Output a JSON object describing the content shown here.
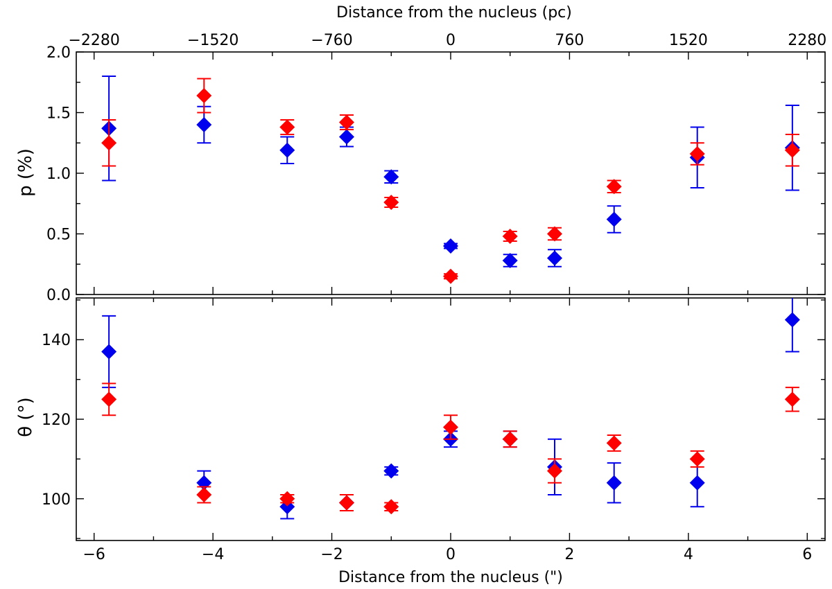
{
  "chart_data": [
    {
      "type": "scatter",
      "panel": "top",
      "ylabel": "p (%)",
      "xlabel": "",
      "top_xlabel": "Distance from the nucleus (pc)",
      "top_xticks": [
        "−2280",
        "−1520",
        "−760",
        "0",
        "760",
        "1520",
        "2280"
      ],
      "top_xticks_values": [
        -6,
        -4,
        -2,
        0,
        2,
        4,
        6
      ],
      "xlim": [
        -6.3,
        6.3
      ],
      "ylim": [
        0,
        2.0
      ],
      "yticks": [
        0.0,
        0.5,
        1.0,
        1.5,
        2.0
      ],
      "ytick_labels": [
        "0.0",
        "0.5",
        "1.0",
        "1.5",
        "2.0"
      ],
      "yminor": [
        0.25,
        0.75,
        1.25,
        1.75
      ],
      "series": [
        {
          "name": "blue",
          "color": "#0000ee",
          "points": [
            {
              "x": -5.75,
              "y": 1.37,
              "lo": 0.94,
              "hi": 1.8
            },
            {
              "x": -4.15,
              "y": 1.4,
              "lo": 1.25,
              "hi": 1.55
            },
            {
              "x": -2.75,
              "y": 1.19,
              "lo": 1.08,
              "hi": 1.3
            },
            {
              "x": -1.75,
              "y": 1.3,
              "lo": 1.22,
              "hi": 1.38
            },
            {
              "x": -1.0,
              "y": 0.97,
              "lo": 0.92,
              "hi": 1.02
            },
            {
              "x": 0.0,
              "y": 0.4,
              "lo": 0.38,
              "hi": 0.42
            },
            {
              "x": 1.0,
              "y": 0.28,
              "lo": 0.23,
              "hi": 0.33
            },
            {
              "x": 1.75,
              "y": 0.3,
              "lo": 0.23,
              "hi": 0.37
            },
            {
              "x": 2.75,
              "y": 0.62,
              "lo": 0.51,
              "hi": 0.73
            },
            {
              "x": 4.15,
              "y": 1.13,
              "lo": 0.88,
              "hi": 1.38
            },
            {
              "x": 5.75,
              "y": 1.21,
              "lo": 0.86,
              "hi": 1.56
            }
          ]
        },
        {
          "name": "red",
          "color": "#ff0000",
          "points": [
            {
              "x": -5.75,
              "y": 1.25,
              "lo": 1.06,
              "hi": 1.44
            },
            {
              "x": -4.15,
              "y": 1.64,
              "lo": 1.5,
              "hi": 1.78
            },
            {
              "x": -2.75,
              "y": 1.38,
              "lo": 1.32,
              "hi": 1.44
            },
            {
              "x": -1.75,
              "y": 1.42,
              "lo": 1.36,
              "hi": 1.48
            },
            {
              "x": -1.0,
              "y": 0.76,
              "lo": 0.72,
              "hi": 0.8
            },
            {
              "x": 0.0,
              "y": 0.15,
              "lo": 0.13,
              "hi": 0.17
            },
            {
              "x": 1.0,
              "y": 0.48,
              "lo": 0.44,
              "hi": 0.52
            },
            {
              "x": 1.75,
              "y": 0.5,
              "lo": 0.45,
              "hi": 0.55
            },
            {
              "x": 2.75,
              "y": 0.89,
              "lo": 0.84,
              "hi": 0.94
            },
            {
              "x": 4.15,
              "y": 1.16,
              "lo": 1.07,
              "hi": 1.25
            },
            {
              "x": 5.75,
              "y": 1.19,
              "lo": 1.06,
              "hi": 1.32
            }
          ]
        }
      ]
    },
    {
      "type": "scatter",
      "panel": "bottom",
      "ylabel": "θ (°)",
      "xlabel": "Distance from the nucleus (\")",
      "xlim": [
        -6.3,
        6.3
      ],
      "xticks": [
        -6,
        -4,
        -2,
        0,
        2,
        4,
        6
      ],
      "xtick_labels": [
        "−6",
        "−4",
        "−2",
        "0",
        "2",
        "4",
        "6"
      ],
      "xminor": [
        -5,
        -3,
        -1,
        1,
        3,
        5
      ],
      "ylim": [
        89.5,
        150.5
      ],
      "yticks": [
        100,
        120,
        140
      ],
      "ytick_labels": [
        "100",
        "120",
        "140"
      ],
      "yminor": [
        90,
        110,
        130,
        150
      ],
      "series": [
        {
          "name": "blue",
          "color": "#0000ee",
          "points": [
            {
              "x": -5.75,
              "y": 137,
              "lo": 128,
              "hi": 146
            },
            {
              "x": -4.15,
              "y": 104,
              "lo": 101,
              "hi": 107
            },
            {
              "x": -2.75,
              "y": 98,
              "lo": 95,
              "hi": 101
            },
            {
              "x": -1.75,
              "y": 99,
              "lo": 97,
              "hi": 101
            },
            {
              "x": -1.0,
              "y": 107,
              "lo": 106,
              "hi": 108
            },
            {
              "x": 0.0,
              "y": 115,
              "lo": 113,
              "hi": 117
            },
            {
              "x": 1.0,
              "y": 115,
              "lo": 113,
              "hi": 117
            },
            {
              "x": 1.75,
              "y": 108,
              "lo": 101,
              "hi": 115
            },
            {
              "x": 2.75,
              "y": 104,
              "lo": 99,
              "hi": 109
            },
            {
              "x": 4.15,
              "y": 104,
              "lo": 98,
              "hi": 110
            },
            {
              "x": 5.75,
              "y": 145,
              "lo": 137,
              "hi": 151
            }
          ]
        },
        {
          "name": "red",
          "color": "#ff0000",
          "points": [
            {
              "x": -5.75,
              "y": 125,
              "lo": 121,
              "hi": 129
            },
            {
              "x": -4.15,
              "y": 101,
              "lo": 99,
              "hi": 103
            },
            {
              "x": -2.75,
              "y": 100,
              "lo": 99,
              "hi": 101
            },
            {
              "x": -1.75,
              "y": 99,
              "lo": 97,
              "hi": 101
            },
            {
              "x": -1.0,
              "y": 98,
              "lo": 97,
              "hi": 99
            },
            {
              "x": 0.0,
              "y": 118,
              "lo": 115,
              "hi": 121
            },
            {
              "x": 1.0,
              "y": 115,
              "lo": 113,
              "hi": 117
            },
            {
              "x": 1.75,
              "y": 107,
              "lo": 104,
              "hi": 110
            },
            {
              "x": 2.75,
              "y": 114,
              "lo": 112,
              "hi": 116
            },
            {
              "x": 4.15,
              "y": 110,
              "lo": 108,
              "hi": 112
            },
            {
              "x": 5.75,
              "y": 125,
              "lo": 122,
              "hi": 128
            }
          ]
        }
      ]
    }
  ]
}
